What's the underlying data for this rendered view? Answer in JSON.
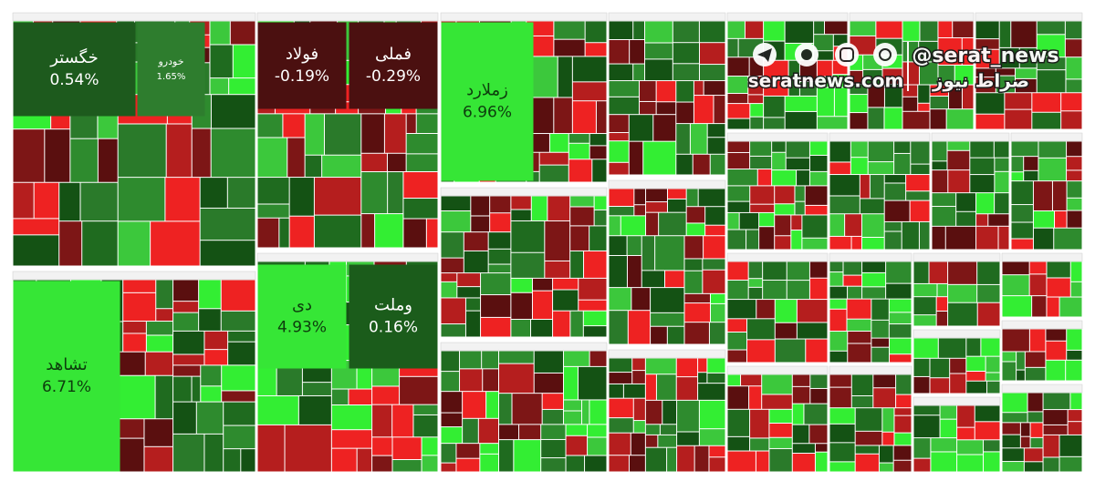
{
  "chart_data": {
    "type": "treemap",
    "categories": [
      "خگستر",
      "خودرو",
      "فولاد",
      "فملی",
      "زملارد",
      "تشاهد",
      "دی",
      "وملت"
    ],
    "values": [
      0.54,
      1.65,
      -0.19,
      -0.29,
      6.96,
      6.71,
      4.93,
      0.16
    ],
    "value_labels": [
      "0.54%",
      "1.65%",
      "-0.19%",
      "-0.29%",
      "6.96%",
      "6.71%",
      "4.93%",
      "0.16%"
    ],
    "colors": [
      "#1d5a1d",
      "#2e7d2e",
      "#4b1010",
      "#4b1010",
      "#36e636",
      "#36e636",
      "#36e636",
      "#1b5c1b"
    ],
    "watermark": {
      "handle": "@serat_news",
      "site": "seratnews.com",
      "brand": "صراط نیوز"
    }
  }
}
